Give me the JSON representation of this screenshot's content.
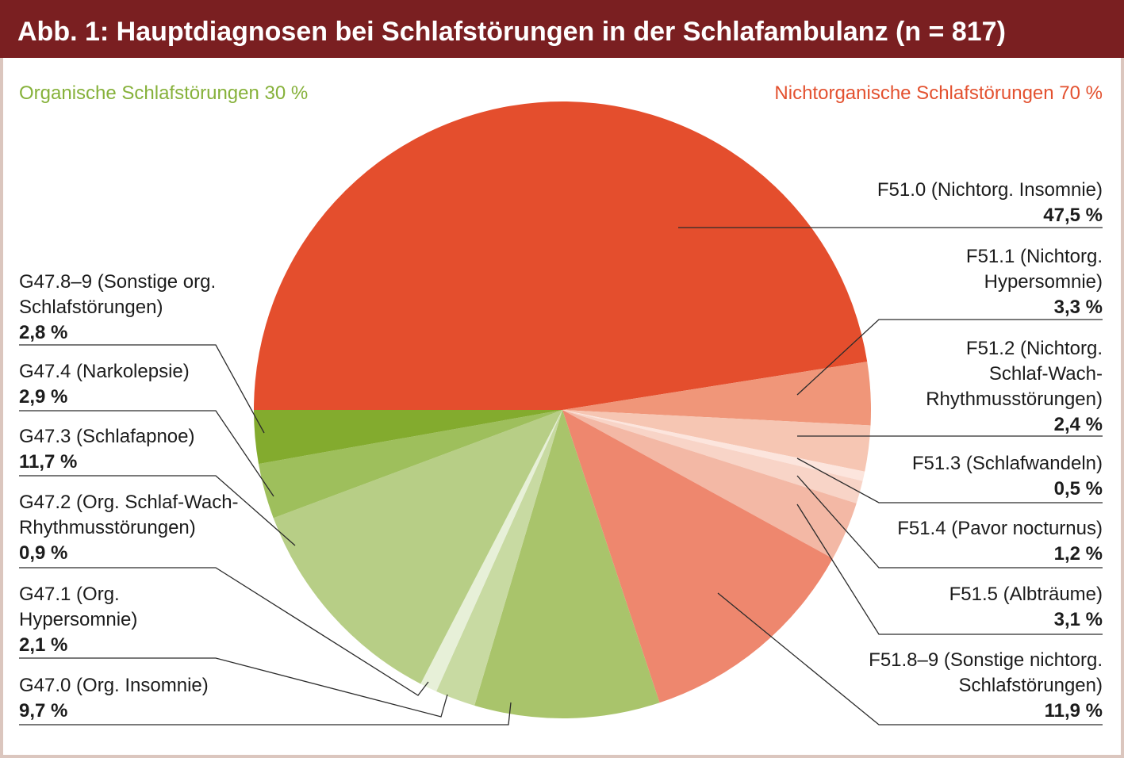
{
  "colors": {
    "header": "#7a1f21",
    "frame": "#dbc6be",
    "leader_line": "#2b2b2b"
  },
  "chart_data": {
    "type": "pie",
    "title": "Abb. 1: Hauptdiagnosen bei Schlafstörungen in der Schlafambulanz (n = 817)",
    "groups": [
      {
        "label": "Organische Schlafstörungen 30 %",
        "color": "#86b13a"
      },
      {
        "label": "Nichtorganische Schlafstörungen 70 %",
        "color": "#e3512f"
      }
    ],
    "slices": [
      {
        "label": [
          "F51.0 (Nichtorg. Insomnie)"
        ],
        "value_label": "47,5 %",
        "value": 47.5,
        "color": "#e44e2d"
      },
      {
        "label": [
          "F51.1 (Nichtorg.",
          "Hypersomnie)"
        ],
        "value_label": "3,3 %",
        "value": 3.3,
        "color": "#f09679"
      },
      {
        "label": [
          "F51.2 (Nichtorg.",
          "Schlaf-Wach-",
          "Rhythmusstörungen)"
        ],
        "value_label": "2,4 %",
        "value": 2.4,
        "color": "#f6c6b3"
      },
      {
        "label": [
          "F51.3 (Schlafwandeln)"
        ],
        "value_label": "0,5 %",
        "value": 0.5,
        "color": "#fce5dd"
      },
      {
        "label": [
          "F51.4 (Pavor nocturnus)"
        ],
        "value_label": "1,2 %",
        "value": 1.2,
        "color": "#f8d4c7"
      },
      {
        "label": [
          "F51.5 (Albträume)"
        ],
        "value_label": "3,1 %",
        "value": 3.1,
        "color": "#f3b8a5"
      },
      {
        "label": [
          "F51.8–9 (Sonstige nichtorg.",
          "Schlafstörungen)"
        ],
        "value_label": "11,9 %",
        "value": 11.9,
        "color": "#ee876e"
      },
      {
        "label": [
          "G47.0 (Org. Insomnie)"
        ],
        "value_label": "9,7 %",
        "value": 9.7,
        "color": "#a9c46b"
      },
      {
        "label": [
          "G47.1 (Org.",
          "Hypersomnie)"
        ],
        "value_label": "2,1 %",
        "value": 2.1,
        "color": "#c8daa2"
      },
      {
        "label": [
          "G47.2 (Org. Schlaf-Wach-",
          "Rhythmusstörungen)"
        ],
        "value_label": "0,9 %",
        "value": 0.9,
        "color": "#e7f0d8"
      },
      {
        "label": [
          "G47.3 (Schlafapnoe)"
        ],
        "value_label": "11,7 %",
        "value": 11.7,
        "color": "#b7ce86"
      },
      {
        "label": [
          "G47.4 (Narkolepsie)"
        ],
        "value_label": "2,9 %",
        "value": 2.9,
        "color": "#9ebf5c"
      },
      {
        "label": [
          "G47.8–9 (Sonstige org.",
          "Schlafstörungen)"
        ],
        "value_label": "2,8 %",
        "value": 2.8,
        "color": "#83ab2e"
      }
    ]
  }
}
